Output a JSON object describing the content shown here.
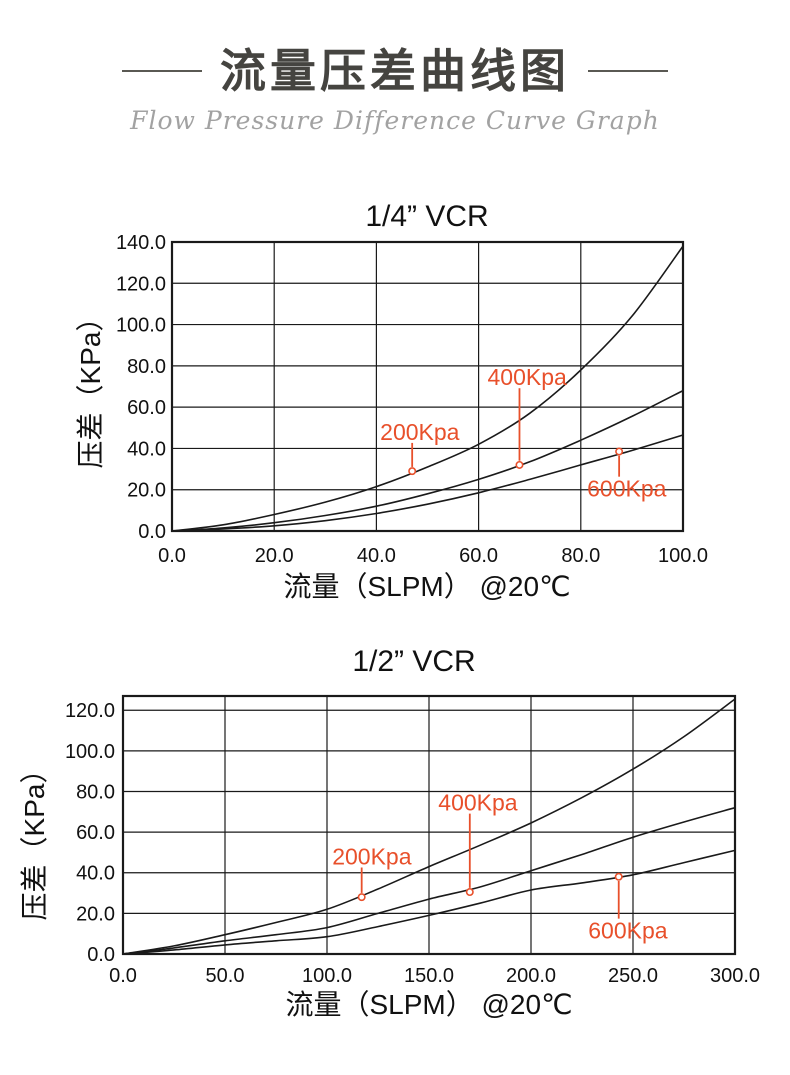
{
  "header": {
    "title": "流量压差曲线图",
    "subtitle": "Flow Pressure Difference Curve Graph"
  },
  "colors": {
    "accent": "#e8502b",
    "ink": "#1a1a1a",
    "title_text": "#454440",
    "subtitle_text": "#a2a2a2"
  },
  "chart_data": [
    {
      "type": "line",
      "title": "1/4” VCR",
      "xlabel": "流量（SLPM） @20℃",
      "ylabel": "压差（KPa）",
      "xlim": [
        0,
        100
      ],
      "ylim": [
        0,
        140
      ],
      "xticks": [
        0,
        20,
        40,
        60,
        80,
        100
      ],
      "yticks": [
        0,
        20,
        40,
        60,
        80,
        100,
        120,
        140
      ],
      "grid": true,
      "legend_position": "inline-annotations",
      "x": [
        0,
        10,
        20,
        30,
        40,
        50,
        60,
        70,
        80,
        90,
        100
      ],
      "series": [
        {
          "name": "200Kpa",
          "values": [
            0,
            3,
            8,
            14,
            21.5,
            31,
            42,
            57,
            78,
            104,
            138
          ]
        },
        {
          "name": "400Kpa",
          "values": [
            0,
            1.5,
            4,
            7.5,
            12,
            18,
            25,
            33.5,
            44,
            55.5,
            68
          ]
        },
        {
          "name": "600Kpa",
          "values": [
            0,
            1,
            2.5,
            5,
            8.5,
            13,
            18.5,
            25,
            32,
            39,
            46.5
          ]
        }
      ],
      "annotations": [
        {
          "label": "200Kpa",
          "marker": {
            "x": 47,
            "y": 29
          },
          "label_at": {
            "x": 48.5,
            "y": 48
          }
        },
        {
          "label": "400Kpa",
          "marker": {
            "x": 68,
            "y": 32
          },
          "label_at": {
            "x": 69.5,
            "y": 74.5
          }
        },
        {
          "label": "600Kpa",
          "marker": {
            "x": 87.5,
            "y": 38.5
          },
          "label_at": {
            "x": 89,
            "y": 20.5
          }
        }
      ]
    },
    {
      "type": "line",
      "title": "1/2” VCR",
      "xlabel": "流量（SLPM） @20℃",
      "ylabel": "压差（KPa）",
      "xlim": [
        0,
        300
      ],
      "ylim": [
        0,
        127
      ],
      "xticks": [
        0,
        50,
        100,
        150,
        200,
        250,
        300
      ],
      "yticks": [
        0,
        20,
        40,
        60,
        80,
        100,
        120
      ],
      "grid": true,
      "legend_position": "inline-annotations",
      "x": [
        0,
        25,
        50,
        75,
        100,
        125,
        150,
        175,
        200,
        225,
        250,
        275,
        300
      ],
      "series": [
        {
          "name": "200Kpa",
          "values": [
            0,
            4,
            9.5,
            15.5,
            22,
            32,
            43,
            53.5,
            64.5,
            77,
            91,
            107,
            125.5
          ]
        },
        {
          "name": "400Kpa",
          "values": [
            0,
            3,
            6.5,
            9.5,
            13,
            20,
            27,
            33,
            41,
            49,
            57.5,
            65,
            72
          ]
        },
        {
          "name": "600Kpa",
          "values": [
            0,
            2,
            4.5,
            6.5,
            8.5,
            13.5,
            19,
            25,
            31.5,
            35,
            39,
            45,
            51
          ]
        }
      ],
      "annotations": [
        {
          "label": "200Kpa",
          "marker": {
            "x": 117,
            "y": 28
          },
          "label_at": {
            "x": 122,
            "y": 48
          }
        },
        {
          "label": "400Kpa",
          "marker": {
            "x": 170,
            "y": 30.5
          },
          "label_at": {
            "x": 174,
            "y": 74.5
          }
        },
        {
          "label": "600Kpa",
          "marker": {
            "x": 243,
            "y": 38
          },
          "label_at": {
            "x": 247.5,
            "y": 11.5
          }
        }
      ]
    }
  ]
}
